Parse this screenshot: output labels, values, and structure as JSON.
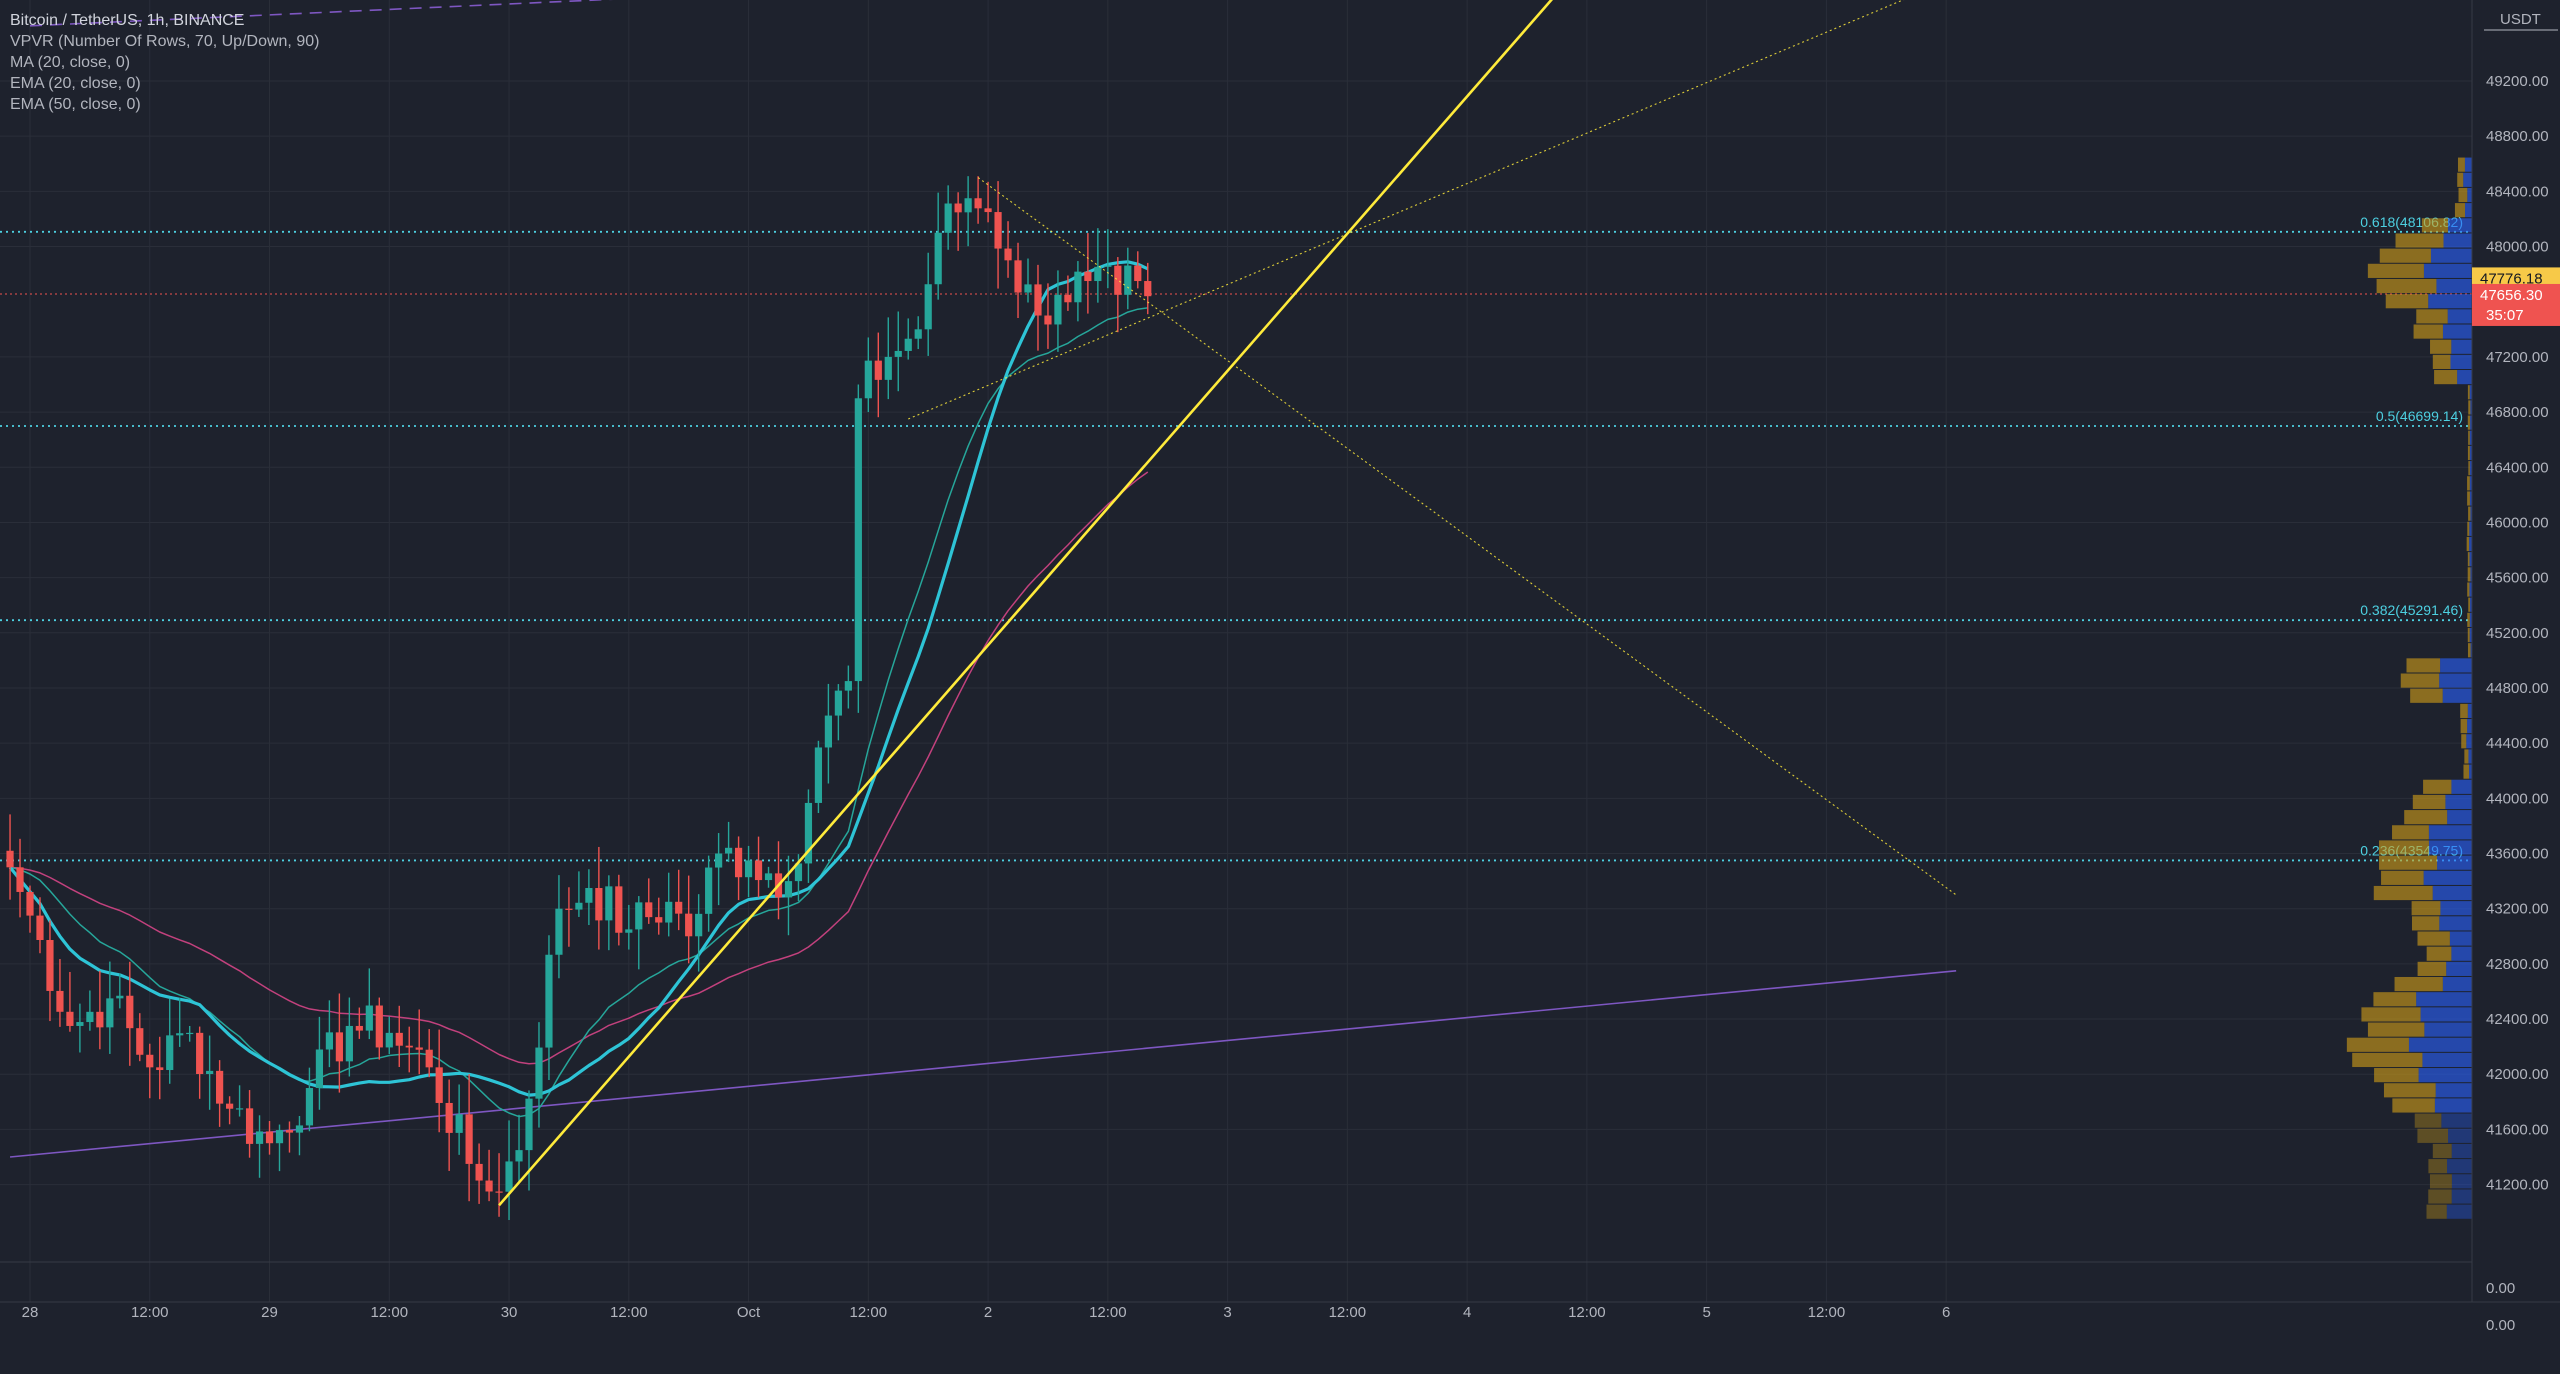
{
  "legend": {
    "symbol": "Bitcoin / TetherUS, 1h, BINANCE",
    "vpvr": "VPVR (Number Of Rows, 70, Up/Down, 90)",
    "ma": "MA (20, close, 0)",
    "ema20": "EMA (20, close, 0)",
    "ema50": "EMA (50, close, 0)"
  },
  "currency": "USDT",
  "colors": {
    "background": "#1e222d",
    "bull": "#26a69a",
    "bear": "#ef5350",
    "ma": "#2ec4d6",
    "ema20": "#26a69a",
    "ema50": "#c2417d",
    "trendline": "#ffeb3b",
    "fib": "#4dd0e1",
    "vp_up": "#2962ff",
    "vp_down": "#d4a017",
    "channel": "#7e57c2"
  },
  "chart_data": {
    "type": "candlestick",
    "symbol": "BTCUSDT",
    "interval": "1h",
    "exchange": "BINANCE",
    "y_range": [
      40900,
      49800
    ],
    "y_ticks": [
      "49200.00",
      "48800.00",
      "48400.00",
      "48000.00",
      "47200.00",
      "46800.00",
      "46400.00",
      "46000.00",
      "45600.00",
      "45200.00",
      "44800.00",
      "44400.00",
      "44000.00",
      "43600.00",
      "43200.00",
      "42800.00",
      "42400.00",
      "42000.00",
      "41600.00",
      "41200.00"
    ],
    "x_tick_labels": [
      "28",
      "12:00",
      "29",
      "12:00",
      "30",
      "12:00",
      "Oct",
      "12:00",
      "2",
      "12:00",
      "3",
      "12:00",
      "4",
      "12:00",
      "5",
      "12:00",
      "6"
    ],
    "x_ticks": [
      {
        "label": "28",
        "hour": 0
      },
      {
        "label": "12:00",
        "hour": 12
      },
      {
        "label": "29",
        "hour": 24
      },
      {
        "label": "12:00",
        "hour": 36
      },
      {
        "label": "30",
        "hour": 48
      },
      {
        "label": "12:00",
        "hour": 60
      },
      {
        "label": "Oct",
        "hour": 72
      },
      {
        "label": "12:00",
        "hour": 84
      },
      {
        "label": "2",
        "hour": 96
      },
      {
        "label": "12:00",
        "hour": 108
      },
      {
        "label": "3",
        "hour": 120
      },
      {
        "label": "12:00",
        "hour": 132
      },
      {
        "label": "4",
        "hour": 144
      },
      {
        "label": "12:00",
        "hour": 156
      },
      {
        "label": "5",
        "hour": 168
      },
      {
        "label": "12:00",
        "hour": 180
      },
      {
        "label": "6",
        "hour": 192
      }
    ],
    "anchors": [
      {
        "hour": -2,
        "price": 43500
      },
      {
        "hour": 0,
        "price": 43150
      },
      {
        "hour": 4,
        "price": 42350
      },
      {
        "hour": 8,
        "price": 42550
      },
      {
        "hour": 12,
        "price": 42050
      },
      {
        "hour": 16,
        "price": 42300
      },
      {
        "hour": 20,
        "price": 41750
      },
      {
        "hour": 24,
        "price": 41500
      },
      {
        "hour": 28,
        "price": 41900
      },
      {
        "hour": 32,
        "price": 42350
      },
      {
        "hour": 36,
        "price": 42300
      },
      {
        "hour": 40,
        "price": 42050
      },
      {
        "hour": 44,
        "price": 41350
      },
      {
        "hour": 46,
        "price": 41150
      },
      {
        "hour": 49,
        "price": 41450
      },
      {
        "hour": 53,
        "price": 43200
      },
      {
        "hour": 56,
        "price": 43350
      },
      {
        "hour": 60,
        "price": 43050
      },
      {
        "hour": 64,
        "price": 43250
      },
      {
        "hour": 66,
        "price": 43000
      },
      {
        "hour": 69,
        "price": 43600
      },
      {
        "hour": 72,
        "price": 43550
      },
      {
        "hour": 76,
        "price": 43400
      },
      {
        "hour": 80,
        "price": 44600
      },
      {
        "hour": 82,
        "price": 44850
      },
      {
        "hour": 83,
        "price": 46900
      },
      {
        "hour": 86,
        "price": 47200
      },
      {
        "hour": 89,
        "price": 47400
      },
      {
        "hour": 91,
        "price": 48100
      },
      {
        "hour": 94,
        "price": 48350
      },
      {
        "hour": 96,
        "price": 48250
      },
      {
        "hour": 98,
        "price": 47900
      },
      {
        "hour": 101,
        "price": 47500
      },
      {
        "hour": 103,
        "price": 47650
      },
      {
        "hour": 106,
        "price": 47750
      },
      {
        "hour": 109,
        "price": 47650
      },
      {
        "hour": 111,
        "price": 47750
      },
      {
        "hour": 112,
        "price": 47640
      }
    ],
    "high_close": {
      "hour": 94.5,
      "high": 48510
    },
    "low_close": {
      "hour": 46,
      "low": 41080
    },
    "current": {
      "hour": 112,
      "price_label": "47656.30",
      "countdown": "35:07"
    },
    "labels": {
      "yellow": "47776.18",
      "red": "47656.30",
      "bottom1": "0.00",
      "bottom2": "0.00"
    },
    "fib_levels": [
      {
        "label": "0.618(48106.82)",
        "price": 48106.82
      },
      {
        "label": "0.5(46699.14)",
        "price": 46699.14
      },
      {
        "label": "0.382(45291.46)",
        "price": 45291.46
      },
      {
        "label": "0.236(43549.75)",
        "price": 43549.75
      }
    ],
    "trendlines": [
      {
        "name": "main-support",
        "p1": {
          "hour": 47,
          "price": 41050
        },
        "p2": {
          "hour": 155,
          "price": 50000
        },
        "color": "#ffeb3b"
      },
      {
        "name": "triangle-upper",
        "p1": {
          "hour": 95,
          "price": 48500
        },
        "p2": {
          "hour": 193,
          "price": 43300
        },
        "color": "#ffeb3b"
      },
      {
        "name": "triangle-lower",
        "p1": {
          "hour": 88,
          "price": 46750
        },
        "p2": {
          "hour": 193,
          "price": 49950
        },
        "color": "#ffeb3b"
      },
      {
        "name": "channel-lower",
        "p1": {
          "hour": -2,
          "price": 41400
        },
        "p2": {
          "hour": 193,
          "price": 42750
        },
        "color": "#7e57c2"
      },
      {
        "name": "channel-upper",
        "p1": {
          "hour": 0,
          "price": 49600
        },
        "p2": {
          "hour": 106,
          "price": 49950
        },
        "color": "#7e57c2"
      }
    ]
  }
}
